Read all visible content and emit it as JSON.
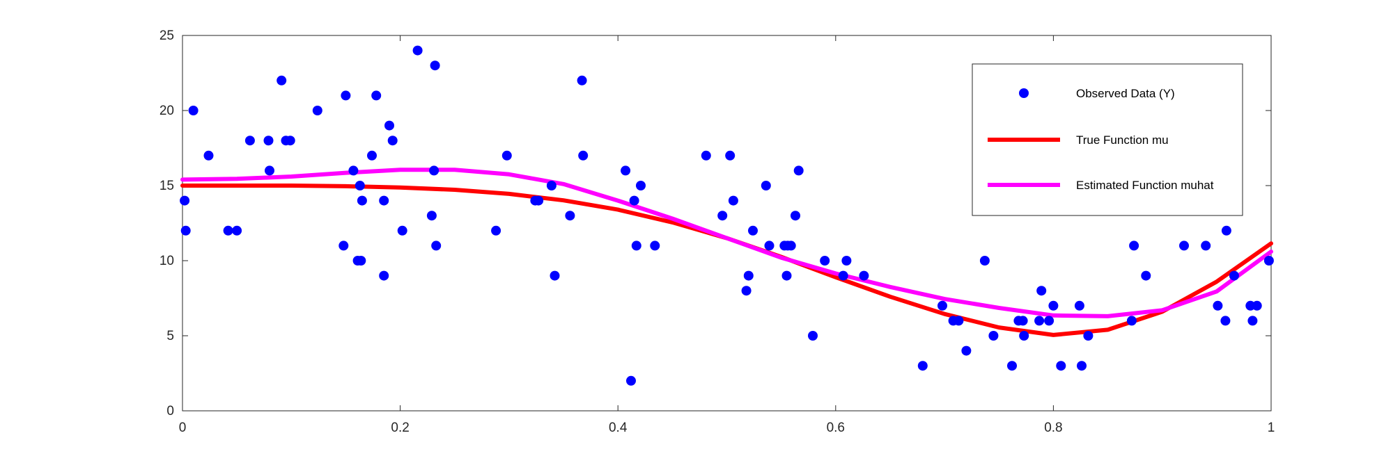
{
  "chart_data": {
    "type": "scatter",
    "title": "",
    "xlabel": "",
    "ylabel": "",
    "xlim": [
      0,
      1
    ],
    "ylim": [
      0,
      25
    ],
    "xticks": [
      "0",
      "0.2",
      "0.4",
      "0.6",
      "0.8",
      "1"
    ],
    "yticks": [
      "0",
      "5",
      "10",
      "15",
      "20",
      "25"
    ],
    "grid": false,
    "legend_position": "top-right",
    "series": [
      {
        "name": "Observed Data (Y)",
        "kind": "scatter",
        "color": "#0000ff",
        "points": [
          [
            0.002,
            14
          ],
          [
            0.003,
            12
          ],
          [
            0.01,
            20
          ],
          [
            0.024,
            17
          ],
          [
            0.042,
            12
          ],
          [
            0.05,
            12
          ],
          [
            0.062,
            18
          ],
          [
            0.079,
            18
          ],
          [
            0.08,
            16
          ],
          [
            0.091,
            22
          ],
          [
            0.095,
            18
          ],
          [
            0.099,
            18
          ],
          [
            0.124,
            20
          ],
          [
            0.148,
            11
          ],
          [
            0.15,
            21
          ],
          [
            0.157,
            16
          ],
          [
            0.161,
            10
          ],
          [
            0.163,
            15
          ],
          [
            0.164,
            10
          ],
          [
            0.165,
            14
          ],
          [
            0.174,
            17
          ],
          [
            0.178,
            21
          ],
          [
            0.185,
            14
          ],
          [
            0.185,
            9
          ],
          [
            0.19,
            19
          ],
          [
            0.193,
            18
          ],
          [
            0.202,
            12
          ],
          [
            0.216,
            24
          ],
          [
            0.229,
            13
          ],
          [
            0.231,
            16
          ],
          [
            0.232,
            23
          ],
          [
            0.233,
            11
          ],
          [
            0.288,
            12
          ],
          [
            0.298,
            17
          ],
          [
            0.324,
            14
          ],
          [
            0.327,
            14
          ],
          [
            0.339,
            15
          ],
          [
            0.342,
            9
          ],
          [
            0.356,
            13
          ],
          [
            0.367,
            22
          ],
          [
            0.368,
            17
          ],
          [
            0.407,
            16
          ],
          [
            0.412,
            2
          ],
          [
            0.415,
            14
          ],
          [
            0.417,
            11
          ],
          [
            0.421,
            15
          ],
          [
            0.434,
            11
          ],
          [
            0.481,
            17
          ],
          [
            0.496,
            13
          ],
          [
            0.503,
            17
          ],
          [
            0.506,
            14
          ],
          [
            0.518,
            8
          ],
          [
            0.52,
            9
          ],
          [
            0.524,
            12
          ],
          [
            0.536,
            15
          ],
          [
            0.539,
            11
          ],
          [
            0.553,
            11
          ],
          [
            0.555,
            9
          ],
          [
            0.556,
            11
          ],
          [
            0.559,
            11
          ],
          [
            0.563,
            13
          ],
          [
            0.566,
            16
          ],
          [
            0.579,
            5
          ],
          [
            0.59,
            10
          ],
          [
            0.607,
            9
          ],
          [
            0.61,
            10
          ],
          [
            0.626,
            9
          ],
          [
            0.68,
            3
          ],
          [
            0.698,
            7
          ],
          [
            0.708,
            6
          ],
          [
            0.713,
            6
          ],
          [
            0.72,
            4
          ],
          [
            0.737,
            10
          ],
          [
            0.745,
            5
          ],
          [
            0.762,
            3
          ],
          [
            0.768,
            6
          ],
          [
            0.772,
            6
          ],
          [
            0.773,
            5
          ],
          [
            0.787,
            6
          ],
          [
            0.789,
            8
          ],
          [
            0.796,
            6
          ],
          [
            0.8,
            7
          ],
          [
            0.807,
            3
          ],
          [
            0.824,
            7
          ],
          [
            0.826,
            3
          ],
          [
            0.832,
            5
          ],
          [
            0.872,
            6
          ],
          [
            0.874,
            11
          ],
          [
            0.885,
            9
          ],
          [
            0.92,
            11
          ],
          [
            0.94,
            11
          ],
          [
            0.951,
            7
          ],
          [
            0.958,
            6
          ],
          [
            0.959,
            12
          ],
          [
            0.966,
            9
          ],
          [
            0.981,
            7
          ],
          [
            0.983,
            6
          ],
          [
            0.987,
            7
          ],
          [
            0.998,
            10
          ]
        ]
      },
      {
        "name": "True Function mu",
        "kind": "line",
        "color": "#ff0000",
        "points": [
          [
            0.0,
            15.0
          ],
          [
            0.05,
            15.0
          ],
          [
            0.1,
            15.0
          ],
          [
            0.15,
            14.96
          ],
          [
            0.2,
            14.87
          ],
          [
            0.25,
            14.72
          ],
          [
            0.3,
            14.45
          ],
          [
            0.35,
            14.02
          ],
          [
            0.4,
            13.4
          ],
          [
            0.45,
            12.55
          ],
          [
            0.5,
            11.5
          ],
          [
            0.55,
            10.25
          ],
          [
            0.6,
            8.9
          ],
          [
            0.65,
            7.6
          ],
          [
            0.7,
            6.45
          ],
          [
            0.75,
            5.55
          ],
          [
            0.8,
            5.05
          ],
          [
            0.85,
            5.4
          ],
          [
            0.9,
            6.6
          ],
          [
            0.95,
            8.6
          ],
          [
            1.0,
            11.15
          ]
        ]
      },
      {
        "name": "Estimated Function muhat",
        "kind": "line",
        "color": "#ff00ff",
        "points": [
          [
            0.0,
            15.4
          ],
          [
            0.05,
            15.45
          ],
          [
            0.1,
            15.6
          ],
          [
            0.15,
            15.85
          ],
          [
            0.2,
            16.05
          ],
          [
            0.25,
            16.05
          ],
          [
            0.3,
            15.75
          ],
          [
            0.35,
            15.1
          ],
          [
            0.4,
            14.0
          ],
          [
            0.45,
            12.8
          ],
          [
            0.5,
            11.5
          ],
          [
            0.55,
            10.2
          ],
          [
            0.6,
            9.15
          ],
          [
            0.65,
            8.25
          ],
          [
            0.7,
            7.45
          ],
          [
            0.75,
            6.85
          ],
          [
            0.8,
            6.35
          ],
          [
            0.85,
            6.3
          ],
          [
            0.9,
            6.7
          ],
          [
            0.95,
            7.95
          ],
          [
            1.0,
            10.6
          ]
        ]
      }
    ]
  }
}
